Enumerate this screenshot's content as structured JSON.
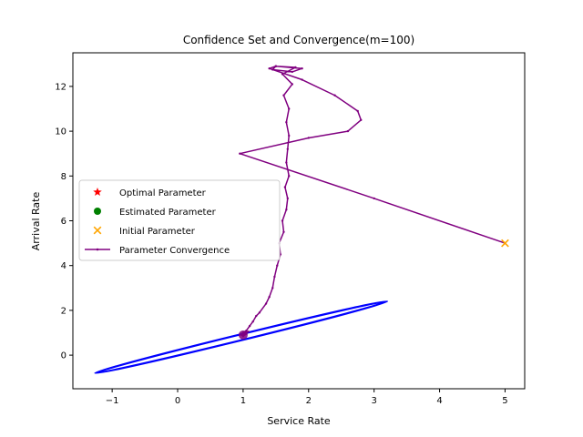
{
  "chart_data": {
    "type": "scatter",
    "title": "Confidence Set and Convergence(m=100)",
    "xlabel": "Service Rate",
    "ylabel": "Arrival Rate",
    "xlim": [
      -1.6,
      5.3
    ],
    "ylim": [
      -1.5,
      13.5
    ],
    "xticks": [
      -1,
      0,
      1,
      2,
      3,
      4,
      5
    ],
    "yticks": [
      0,
      2,
      4,
      6,
      8,
      10,
      12
    ],
    "grid": false,
    "legend_position": "center-left",
    "legend": [
      {
        "label": "Optimal Parameter",
        "marker": "star",
        "color": "#ff0000"
      },
      {
        "label": "Estimated Parameter",
        "marker": "circle",
        "color": "#008000"
      },
      {
        "label": "Initial Parameter",
        "marker": "x",
        "color": "#ffa500"
      },
      {
        "label": "Parameter Convergence",
        "marker": "line",
        "color": "#800080"
      }
    ],
    "points": {
      "optimal": {
        "x": 1.0,
        "y": 0.9
      },
      "estimated": {
        "x": 1.0,
        "y": 0.85
      },
      "initial": {
        "x": 5.0,
        "y": 5.0
      }
    },
    "confidence_ellipse": {
      "color": "#0000ff",
      "center": [
        0.97,
        0.8
      ],
      "major_end_a": [
        3.2,
        2.4
      ],
      "major_end_b": [
        -1.26,
        -0.8
      ],
      "semi_minor": 0.06
    },
    "convergence_path": {
      "color": "#800080",
      "x": [
        5.0,
        3.0,
        0.95,
        2.0,
        2.6,
        2.8,
        2.75,
        2.4,
        1.9,
        1.4,
        1.5,
        1.9,
        1.75,
        1.45,
        1.5,
        1.8,
        1.6,
        1.75,
        1.62,
        1.7,
        1.66,
        1.7,
        1.68,
        1.66,
        1.7,
        1.64,
        1.68,
        1.66,
        1.6,
        1.62,
        1.55,
        1.57,
        1.52,
        1.48,
        1.45,
        1.4,
        1.35,
        1.25,
        1.2,
        1.15,
        1.1,
        1.05,
        1.0,
        1.08,
        0.98,
        1.05,
        1.0
      ],
      "y": [
        5.0,
        7.0,
        9.0,
        9.7,
        10.0,
        10.5,
        10.9,
        11.6,
        12.3,
        12.8,
        12.9,
        12.8,
        12.65,
        12.75,
        12.9,
        12.85,
        12.55,
        12.1,
        11.6,
        11.0,
        10.4,
        9.8,
        9.2,
        8.6,
        8.0,
        7.5,
        7.0,
        6.5,
        6.0,
        5.5,
        5.0,
        4.5,
        4.0,
        3.5,
        3.0,
        2.6,
        2.3,
        1.9,
        1.75,
        1.5,
        1.3,
        1.1,
        1.0,
        1.05,
        0.9,
        0.95,
        0.85
      ]
    }
  }
}
